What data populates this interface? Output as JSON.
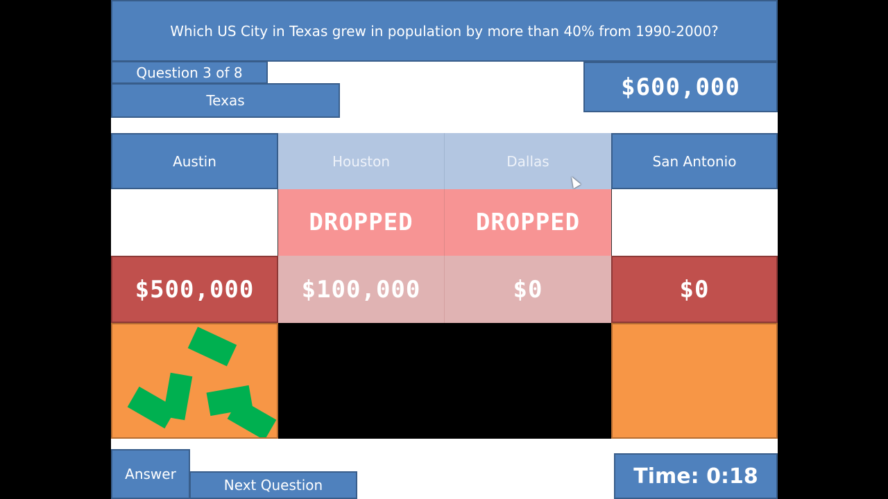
{
  "question": "Which US City in Texas grew in population by more than 40% from 1990-2000?",
  "progress": "Question 3 of 8",
  "category": "Texas",
  "bank": "$600,000",
  "answers": [
    {
      "label": "Austin",
      "status": "",
      "amount": "$500,000",
      "active": true
    },
    {
      "label": "Houston",
      "status": "DROPPED",
      "amount": "$100,000",
      "active": false
    },
    {
      "label": "Dallas",
      "status": "DROPPED",
      "amount": "$0",
      "active": false
    },
    {
      "label": "San Antonio",
      "status": "",
      "amount": "$0",
      "active": true
    }
  ],
  "buttons": {
    "answer": "Answer",
    "next": "Next Question"
  },
  "timer": "Time: 0:18",
  "colors": {
    "blue": "#4f81bd",
    "red": "#c0504d",
    "orange": "#f79646",
    "green": "#00b050",
    "dropped": "#f79494"
  }
}
